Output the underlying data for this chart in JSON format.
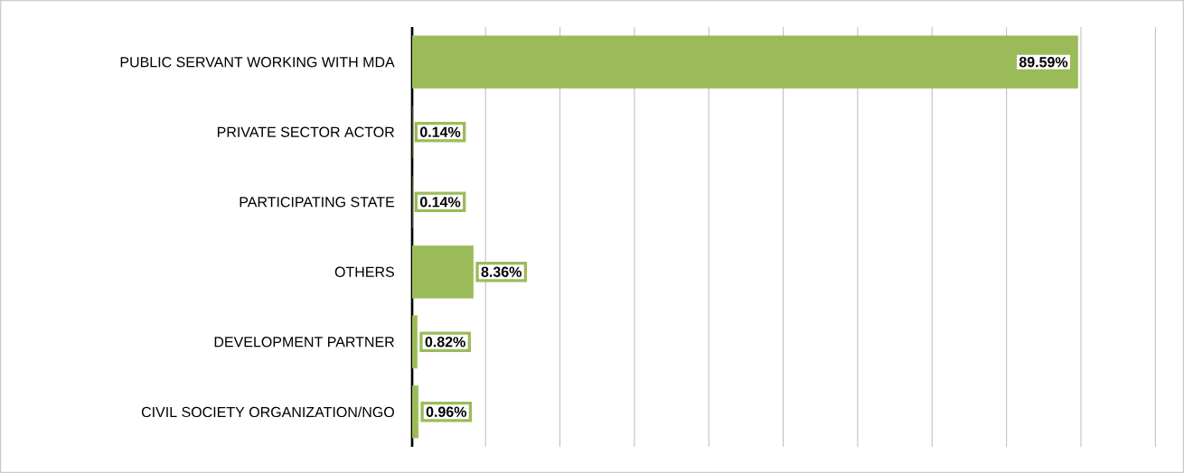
{
  "chart_data": {
    "type": "bar",
    "orientation": "horizontal",
    "categories": [
      "PUBLIC SERVANT WORKING WITH MDA",
      "PRIVATE SECTOR ACTOR",
      "PARTICIPATING STATE",
      "OTHERS",
      "DEVELOPMENT PARTNER",
      "CIVIL SOCIETY ORGANIZATION/NGO"
    ],
    "values": [
      89.59,
      0.14,
      0.14,
      8.36,
      0.82,
      0.96
    ],
    "value_labels": [
      "89.59%",
      "0.14%",
      "0.14%",
      "8.36%",
      "0.82%",
      "0.96%"
    ],
    "color": "#9bbb59",
    "grid": "x",
    "tick_labels": "y"
  }
}
